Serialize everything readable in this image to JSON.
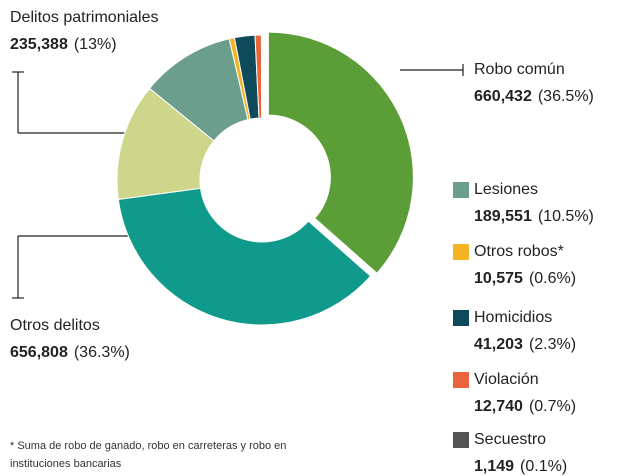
{
  "chart_data": {
    "type": "donut",
    "series": [
      {
        "name": "Robo común",
        "values": [
          660432
        ],
        "value_labels": [
          "660,432"
        ],
        "percents": [
          36.5
        ],
        "percent_labels": [
          "(36.5%)"
        ],
        "color": "#5b9d36"
      },
      {
        "name": "Otros delitos",
        "values": [
          656808
        ],
        "value_labels": [
          "656,808"
        ],
        "percents": [
          36.3
        ],
        "percent_labels": [
          "(36.3%)"
        ],
        "color": "#0f9a8b"
      },
      {
        "name": "Delitos patrimoniales",
        "values": [
          235388
        ],
        "value_labels": [
          "235,388"
        ],
        "percents": [
          13
        ],
        "percent_labels": [
          "(13%)"
        ],
        "color": "#ced68b"
      },
      {
        "name": "Lesiones",
        "values": [
          189551
        ],
        "value_labels": [
          "189,551"
        ],
        "percents": [
          10.5
        ],
        "percent_labels": [
          "(10.5%)"
        ],
        "color": "#6c9e8d"
      },
      {
        "name": "Otros robos*",
        "values": [
          10575
        ],
        "value_labels": [
          "10,575"
        ],
        "percents": [
          0.6
        ],
        "percent_labels": [
          "(0.6%)"
        ],
        "color": "#f4b324"
      },
      {
        "name": "Homicidios",
        "values": [
          41203
        ],
        "value_labels": [
          "41,203"
        ],
        "percents": [
          2.3
        ],
        "percent_labels": [
          "(2.3%)"
        ],
        "color": "#0e4a5a"
      },
      {
        "name": "Violación",
        "values": [
          12740
        ],
        "value_labels": [
          "12,740"
        ],
        "percents": [
          0.7
        ],
        "percent_labels": [
          "(0.7%)"
        ],
        "color": "#e8653b"
      },
      {
        "name": "Secuestro",
        "values": [
          1149
        ],
        "value_labels": [
          "1,149"
        ],
        "percents": [
          0.1
        ],
        "percent_labels": [
          "(0.1%)"
        ],
        "color": "#555555"
      }
    ],
    "note": "* Suma de robo de ganado, robo en carreteras y robo en instituciones bancarias"
  }
}
